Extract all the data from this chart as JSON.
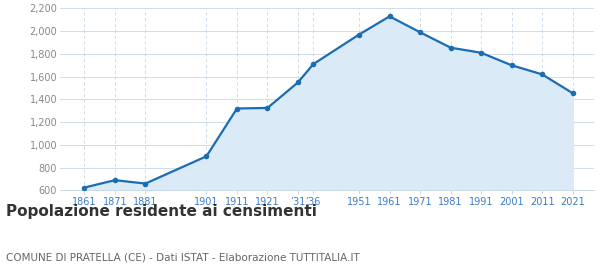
{
  "years": [
    1861,
    1871,
    1881,
    1901,
    1911,
    1921,
    1931,
    1936,
    1951,
    1961,
    1971,
    1981,
    1991,
    2001,
    2011,
    2021
  ],
  "population": [
    625,
    690,
    660,
    900,
    1320,
    1325,
    1550,
    1710,
    1970,
    2130,
    1990,
    1855,
    1810,
    1700,
    1620,
    1455
  ],
  "x_tick_labels": [
    "1861",
    "1871",
    "1881",
    "1901",
    "1911",
    "1921",
    "’31",
    "’36",
    "1951",
    "1961",
    "1971",
    "1981",
    "1991",
    "2001",
    "2011",
    "2021"
  ],
  "line_color": "#1a6cb5",
  "fill_color": "#daeaf7",
  "marker_color": "#1a6cb5",
  "background_color": "#ffffff",
  "grid_color": "#c8d8e8",
  "title": "Popolazione residente ai censimenti",
  "subtitle": "COMUNE DI PRATELLA (CE) - Dati ISTAT - Elaborazione TUTTITALIA.IT",
  "ylim": [
    600,
    2200
  ],
  "yticks": [
    600,
    800,
    1000,
    1200,
    1400,
    1600,
    1800,
    2000,
    2200
  ],
  "title_fontsize": 11,
  "subtitle_fontsize": 7.5,
  "tick_color": "#3a7bc8",
  "y_tick_color": "#888888",
  "title_color": "#333333",
  "subtitle_color": "#666666"
}
